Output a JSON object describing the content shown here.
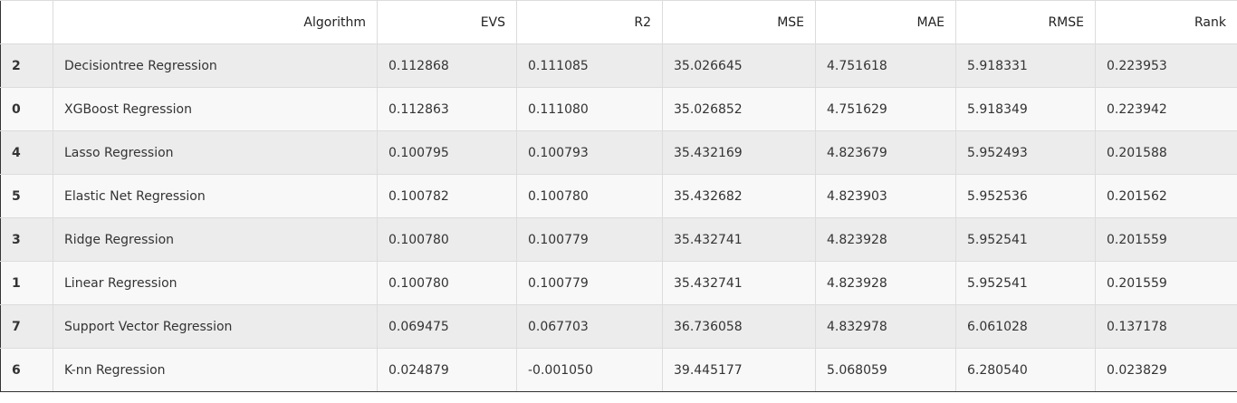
{
  "table": {
    "columns": [
      "",
      "Algorithm",
      "EVS",
      "R2",
      "MSE",
      "MAE",
      "RMSE",
      "Rank"
    ],
    "rows": [
      [
        "2",
        "Decisiontree Regression",
        "0.112868",
        "0.111085",
        "35.026645",
        "4.751618",
        "5.918331",
        "0.223953"
      ],
      [
        "0",
        "XGBoost Regression",
        "0.112863",
        "0.111080",
        "35.026852",
        "4.751629",
        "5.918349",
        "0.223942"
      ],
      [
        "4",
        "Lasso Regression",
        "0.100795",
        "0.100793",
        "35.432169",
        "4.823679",
        "5.952493",
        "0.201588"
      ],
      [
        "5",
        "Elastic Net Regression",
        "0.100782",
        "0.100780",
        "35.432682",
        "4.823903",
        "5.952536",
        "0.201562"
      ],
      [
        "3",
        "Ridge Regression",
        "0.100780",
        "0.100779",
        "35.432741",
        "4.823928",
        "5.952541",
        "0.201559"
      ],
      [
        "1",
        "Linear Regression",
        "0.100780",
        "0.100779",
        "35.432741",
        "4.823928",
        "5.952541",
        "0.201559"
      ],
      [
        "7",
        "Support Vector Regression",
        "0.069475",
        "0.067703",
        "36.736058",
        "4.832978",
        "6.061028",
        "0.137178"
      ],
      [
        "6",
        "K-nn Regression",
        "0.024879",
        "-0.001050",
        "39.445177",
        "5.068059",
        "6.280540",
        "0.023829"
      ]
    ]
  }
}
